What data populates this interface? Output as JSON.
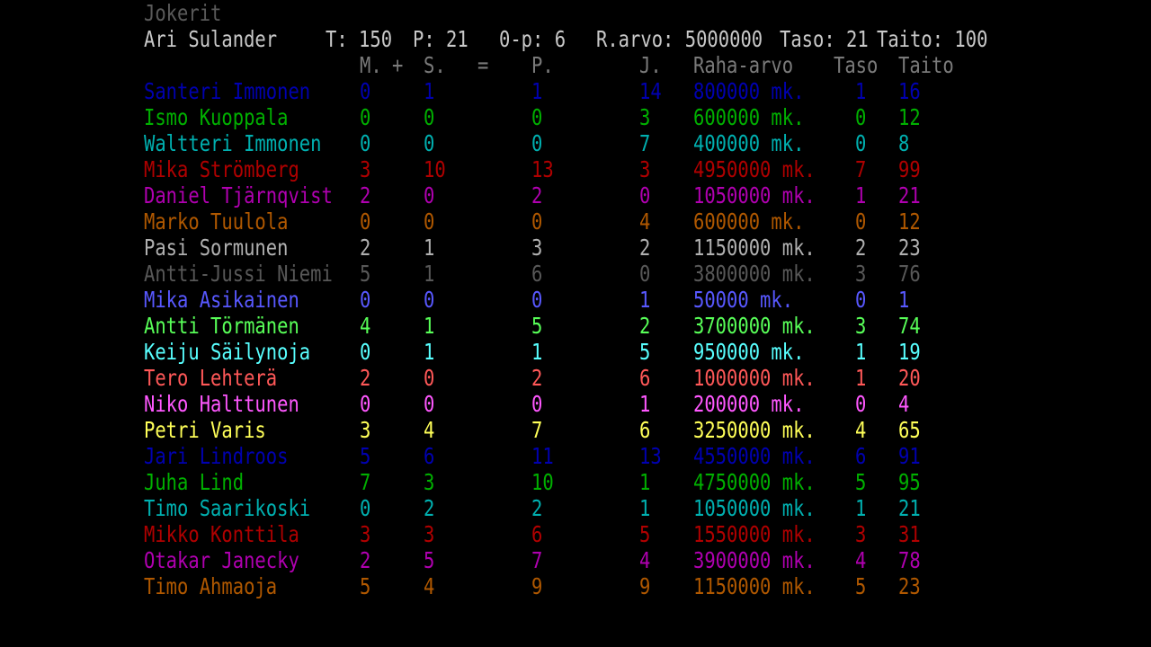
{
  "team_name": "Jokerit",
  "team_color": "#5a5a5a",
  "header_color": "#c8c8c8",
  "colhead_color": "#7a7a7a",
  "summary": {
    "player": "Ari Sulander",
    "t_label": "T: 150",
    "p_label": "P: 21",
    "op_label": "0-p: 6",
    "rarvo_label": "R.arvo: 5000000",
    "taso_label": "Taso: 21",
    "taito_label": "Taito: 100"
  },
  "columns": {
    "m": "M.",
    "plus": "+",
    "s": "S.",
    "eq": "=",
    "p": "P.",
    "j": "J.",
    "raha": "Raha-arvo",
    "taso": "Taso",
    "taito": "Taito"
  },
  "players": [
    {
      "name": "Santeri Immonen",
      "m": "0",
      "s": "1",
      "p": "1",
      "j": "14",
      "raha": "800000 mk.",
      "taso": "1",
      "taito": "16",
      "color": "#0000b0"
    },
    {
      "name": "Ismo Kuoppala",
      "m": "0",
      "s": "0",
      "p": "0",
      "j": "3",
      "raha": "600000 mk.",
      "taso": "0",
      "taito": "12",
      "color": "#00b000"
    },
    {
      "name": "Waltteri Immonen",
      "m": "0",
      "s": "0",
      "p": "0",
      "j": "7",
      "raha": "400000 mk.",
      "taso": "0",
      "taito": "8",
      "color": "#00b0b0"
    },
    {
      "name": "Mika Strömberg",
      "m": "3",
      "s": "10",
      "p": "13",
      "j": "3",
      "raha": "4950000 mk.",
      "taso": "7",
      "taito": "99",
      "color": "#b00000"
    },
    {
      "name": "Daniel Tjärnqvist",
      "m": "2",
      "s": "0",
      "p": "2",
      "j": "0",
      "raha": "1050000 mk.",
      "taso": "1",
      "taito": "21",
      "color": "#b000b0"
    },
    {
      "name": "Marko Tuulola",
      "m": "0",
      "s": "0",
      "p": "0",
      "j": "4",
      "raha": "600000 mk.",
      "taso": "0",
      "taito": "12",
      "color": "#b05800"
    },
    {
      "name": "Pasi Sormunen",
      "m": "2",
      "s": "1",
      "p": "3",
      "j": "2",
      "raha": "1150000 mk.",
      "taso": "2",
      "taito": "23",
      "color": "#b0b0b0"
    },
    {
      "name": "Antti-Jussi Niemi",
      "m": "5",
      "s": "1",
      "p": "6",
      "j": "0",
      "raha": "3800000 mk.",
      "taso": "3",
      "taito": "76",
      "color": "#585858"
    },
    {
      "name": "Mika Asikainen",
      "m": "0",
      "s": "0",
      "p": "0",
      "j": "1",
      "raha": "50000 mk.",
      "taso": "0",
      "taito": "1",
      "color": "#5858ff"
    },
    {
      "name": "Antti Törmänen",
      "m": "4",
      "s": "1",
      "p": "5",
      "j": "2",
      "raha": "3700000 mk.",
      "taso": "3",
      "taito": "74",
      "color": "#58ff58"
    },
    {
      "name": "Keiju Säilynoja",
      "m": "0",
      "s": "1",
      "p": "1",
      "j": "5",
      "raha": "950000 mk.",
      "taso": "1",
      "taito": "19",
      "color": "#58ffff"
    },
    {
      "name": "Tero Lehterä",
      "m": "2",
      "s": "0",
      "p": "2",
      "j": "6",
      "raha": "1000000 mk.",
      "taso": "1",
      "taito": "20",
      "color": "#ff5858"
    },
    {
      "name": "Niko Halttunen",
      "m": "0",
      "s": "0",
      "p": "0",
      "j": "1",
      "raha": "200000 mk.",
      "taso": "0",
      "taito": "4",
      "color": "#ff58ff"
    },
    {
      "name": "Petri Varis",
      "m": "3",
      "s": "4",
      "p": "7",
      "j": "6",
      "raha": "3250000 mk.",
      "taso": "4",
      "taito": "65",
      "color": "#ffff58"
    },
    {
      "name": "Jari Lindroos",
      "m": "5",
      "s": "6",
      "p": "11",
      "j": "13",
      "raha": "4550000 mk.",
      "taso": "6",
      "taito": "91",
      "color": "#0000b0"
    },
    {
      "name": "Juha Lind",
      "m": "7",
      "s": "3",
      "p": "10",
      "j": "1",
      "raha": "4750000 mk.",
      "taso": "5",
      "taito": "95",
      "color": "#00b000"
    },
    {
      "name": "Timo Saarikoski",
      "m": "0",
      "s": "2",
      "p": "2",
      "j": "1",
      "raha": "1050000 mk.",
      "taso": "1",
      "taito": "21",
      "color": "#00b0b0"
    },
    {
      "name": "Mikko Konttila",
      "m": "3",
      "s": "3",
      "p": "6",
      "j": "5",
      "raha": "1550000 mk.",
      "taso": "3",
      "taito": "31",
      "color": "#b00000"
    },
    {
      "name": "Otakar Janecky",
      "m": "2",
      "s": "5",
      "p": "7",
      "j": "4",
      "raha": "3900000 mk.",
      "taso": "4",
      "taito": "78",
      "color": "#b000b0"
    },
    {
      "name": "Timo Ahmaoja",
      "m": "5",
      "s": "4",
      "p": "9",
      "j": "9",
      "raha": "1150000 mk.",
      "taso": "5",
      "taito": "23",
      "color": "#b05800"
    }
  ]
}
